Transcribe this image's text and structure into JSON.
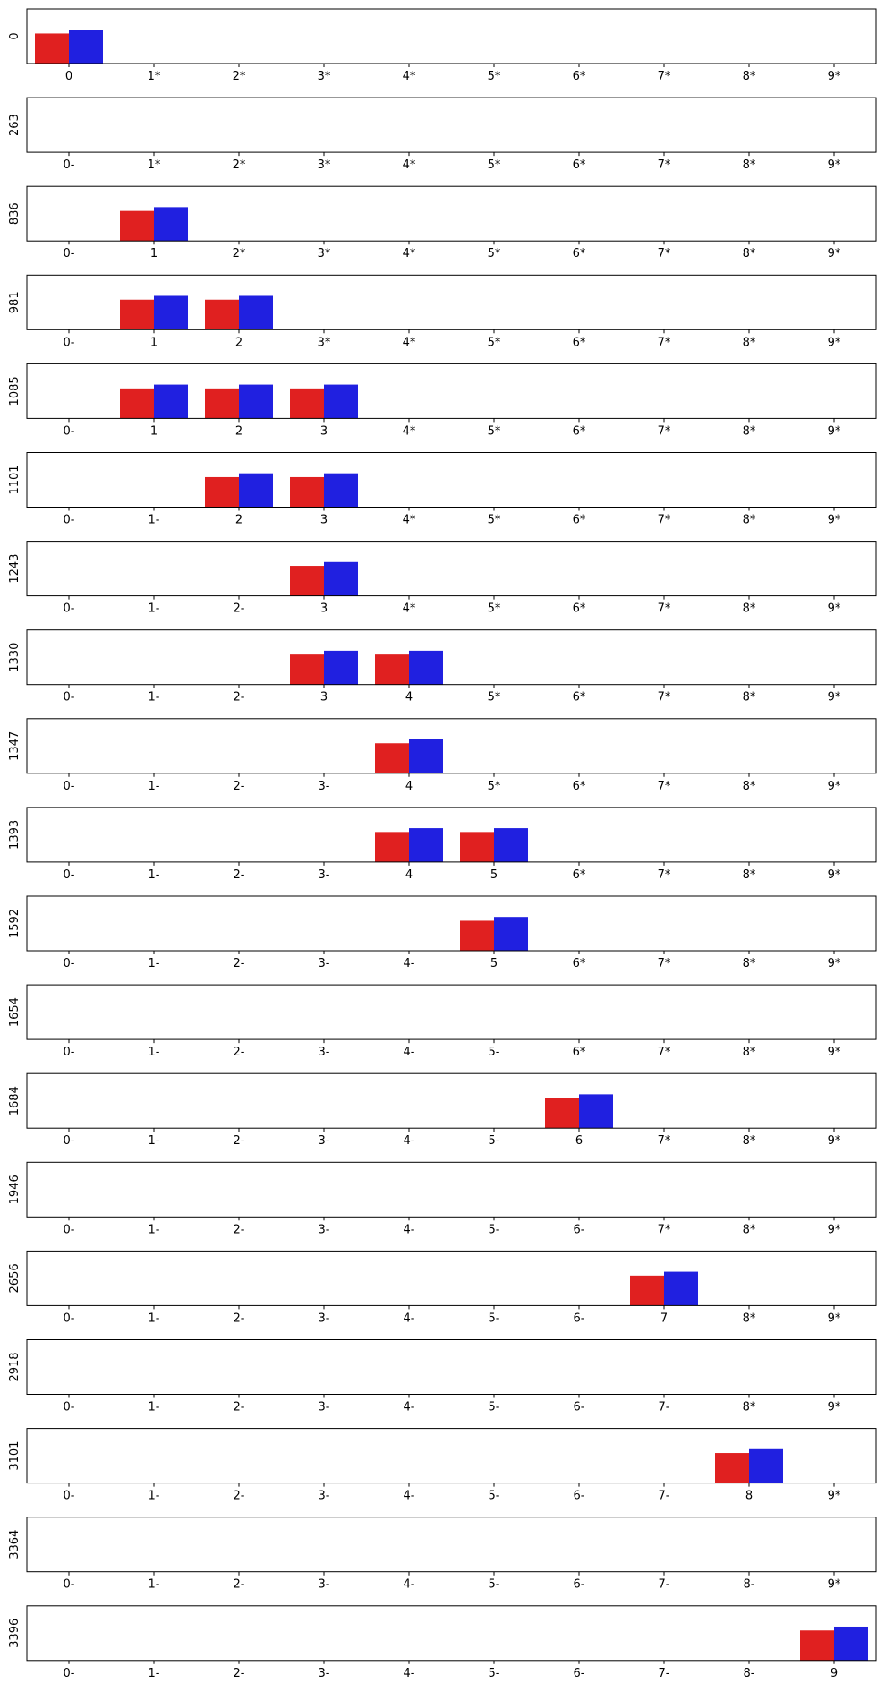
{
  "chart_data": {
    "type": "bar",
    "layout": "stacked small multiples, one panel per row",
    "x_tick_positions": [
      0,
      1,
      2,
      3,
      4,
      5,
      6,
      7,
      8,
      9
    ],
    "colors": {
      "series_a": "#e02020",
      "series_b": "#2020e0"
    },
    "series_a_value": 0.55,
    "series_b_value": 0.62,
    "value_axis_hidden": true,
    "ylim": [
      0,
      1
    ],
    "panels": [
      {
        "ylabel": "0",
        "ticks": [
          "0",
          "1*",
          "2*",
          "3*",
          "4*",
          "5*",
          "6*",
          "7*",
          "8*",
          "9*"
        ],
        "bars": [
          0
        ]
      },
      {
        "ylabel": "263",
        "ticks": [
          "0-",
          "1*",
          "2*",
          "3*",
          "4*",
          "5*",
          "6*",
          "7*",
          "8*",
          "9*"
        ],
        "bars": []
      },
      {
        "ylabel": "836",
        "ticks": [
          "0-",
          "1",
          "2*",
          "3*",
          "4*",
          "5*",
          "6*",
          "7*",
          "8*",
          "9*"
        ],
        "bars": [
          1
        ]
      },
      {
        "ylabel": "981",
        "ticks": [
          "0-",
          "1",
          "2",
          "3*",
          "4*",
          "5*",
          "6*",
          "7*",
          "8*",
          "9*"
        ],
        "bars": [
          1,
          2
        ]
      },
      {
        "ylabel": "1085",
        "ticks": [
          "0-",
          "1",
          "2",
          "3",
          "4*",
          "5*",
          "6*",
          "7*",
          "8*",
          "9*"
        ],
        "bars": [
          1,
          2,
          3
        ]
      },
      {
        "ylabel": "1101",
        "ticks": [
          "0-",
          "1-",
          "2",
          "3",
          "4*",
          "5*",
          "6*",
          "7*",
          "8*",
          "9*"
        ],
        "bars": [
          2,
          3
        ]
      },
      {
        "ylabel": "1243",
        "ticks": [
          "0-",
          "1-",
          "2-",
          "3",
          "4*",
          "5*",
          "6*",
          "7*",
          "8*",
          "9*"
        ],
        "bars": [
          3
        ]
      },
      {
        "ylabel": "1330",
        "ticks": [
          "0-",
          "1-",
          "2-",
          "3",
          "4",
          "5*",
          "6*",
          "7*",
          "8*",
          "9*"
        ],
        "bars": [
          3,
          4
        ]
      },
      {
        "ylabel": "1347",
        "ticks": [
          "0-",
          "1-",
          "2-",
          "3-",
          "4",
          "5*",
          "6*",
          "7*",
          "8*",
          "9*"
        ],
        "bars": [
          4
        ]
      },
      {
        "ylabel": "1393",
        "ticks": [
          "0-",
          "1-",
          "2-",
          "3-",
          "4",
          "5",
          "6*",
          "7*",
          "8*",
          "9*"
        ],
        "bars": [
          4,
          5
        ]
      },
      {
        "ylabel": "1592",
        "ticks": [
          "0-",
          "1-",
          "2-",
          "3-",
          "4-",
          "5",
          "6*",
          "7*",
          "8*",
          "9*"
        ],
        "bars": [
          5
        ]
      },
      {
        "ylabel": "1654",
        "ticks": [
          "0-",
          "1-",
          "2-",
          "3-",
          "4-",
          "5-",
          "6*",
          "7*",
          "8*",
          "9*"
        ],
        "bars": []
      },
      {
        "ylabel": "1684",
        "ticks": [
          "0-",
          "1-",
          "2-",
          "3-",
          "4-",
          "5-",
          "6",
          "7*",
          "8*",
          "9*"
        ],
        "bars": [
          6
        ]
      },
      {
        "ylabel": "1946",
        "ticks": [
          "0-",
          "1-",
          "2-",
          "3-",
          "4-",
          "5-",
          "6-",
          "7*",
          "8*",
          "9*"
        ],
        "bars": []
      },
      {
        "ylabel": "2656",
        "ticks": [
          "0-",
          "1-",
          "2-",
          "3-",
          "4-",
          "5-",
          "6-",
          "7",
          "8*",
          "9*"
        ],
        "bars": [
          7
        ]
      },
      {
        "ylabel": "2918",
        "ticks": [
          "0-",
          "1-",
          "2-",
          "3-",
          "4-",
          "5-",
          "6-",
          "7-",
          "8*",
          "9*"
        ],
        "bars": []
      },
      {
        "ylabel": "3101",
        "ticks": [
          "0-",
          "1-",
          "2-",
          "3-",
          "4-",
          "5-",
          "6-",
          "7-",
          "8",
          "9*"
        ],
        "bars": [
          8
        ]
      },
      {
        "ylabel": "3364",
        "ticks": [
          "0-",
          "1-",
          "2-",
          "3-",
          "4-",
          "5-",
          "6-",
          "7-",
          "8-",
          "9*"
        ],
        "bars": []
      },
      {
        "ylabel": "3396",
        "ticks": [
          "0-",
          "1-",
          "2-",
          "3-",
          "4-",
          "5-",
          "6-",
          "7-",
          "8-",
          "9"
        ],
        "bars": [
          9
        ]
      }
    ]
  }
}
